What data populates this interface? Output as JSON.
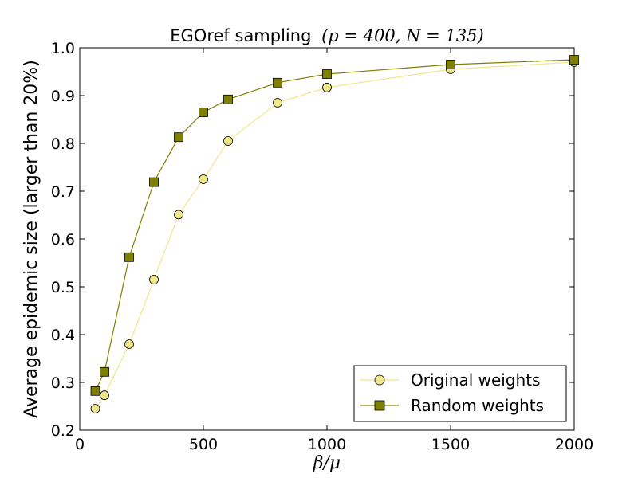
{
  "chart_data": {
    "type": "line",
    "title": "EGOref sampling",
    "title_math": "(p = 400, N = 135)",
    "xlabel": "β/μ",
    "ylabel": "Average epidemic size (larger than 20%)",
    "xlim": [
      0,
      2000
    ],
    "ylim": [
      0.2,
      1.0
    ],
    "x_ticks": [
      "0",
      "500",
      "1000",
      "1500",
      "2000"
    ],
    "y_ticks": [
      "0.2",
      "0.3",
      "0.4",
      "0.5",
      "0.6",
      "0.7",
      "0.8",
      "0.9",
      "1.0"
    ],
    "grid": false,
    "legend_position": "lower-right",
    "series": [
      {
        "name": "Original weights",
        "marker": "circle",
        "line_color": "#f0e68c",
        "marker_color": "#f0e68c",
        "points": [
          {
            "x": 63,
            "y": 0.245
          },
          {
            "x": 100,
            "y": 0.273
          },
          {
            "x": 200,
            "y": 0.38
          },
          {
            "x": 300,
            "y": 0.515
          },
          {
            "x": 400,
            "y": 0.651
          },
          {
            "x": 500,
            "y": 0.725
          },
          {
            "x": 600,
            "y": 0.805
          },
          {
            "x": 800,
            "y": 0.885
          },
          {
            "x": 1000,
            "y": 0.917
          },
          {
            "x": 1500,
            "y": 0.955
          },
          {
            "x": 2000,
            "y": 0.97
          }
        ]
      },
      {
        "name": "Random weights",
        "marker": "square",
        "line_color": "#808000",
        "marker_color": "#808000",
        "points": [
          {
            "x": 63,
            "y": 0.282
          },
          {
            "x": 100,
            "y": 0.322
          },
          {
            "x": 200,
            "y": 0.562
          },
          {
            "x": 300,
            "y": 0.719
          },
          {
            "x": 400,
            "y": 0.813
          },
          {
            "x": 500,
            "y": 0.865
          },
          {
            "x": 600,
            "y": 0.892
          },
          {
            "x": 800,
            "y": 0.927
          },
          {
            "x": 1000,
            "y": 0.945
          },
          {
            "x": 1500,
            "y": 0.965
          },
          {
            "x": 2000,
            "y": 0.975
          }
        ]
      }
    ]
  }
}
